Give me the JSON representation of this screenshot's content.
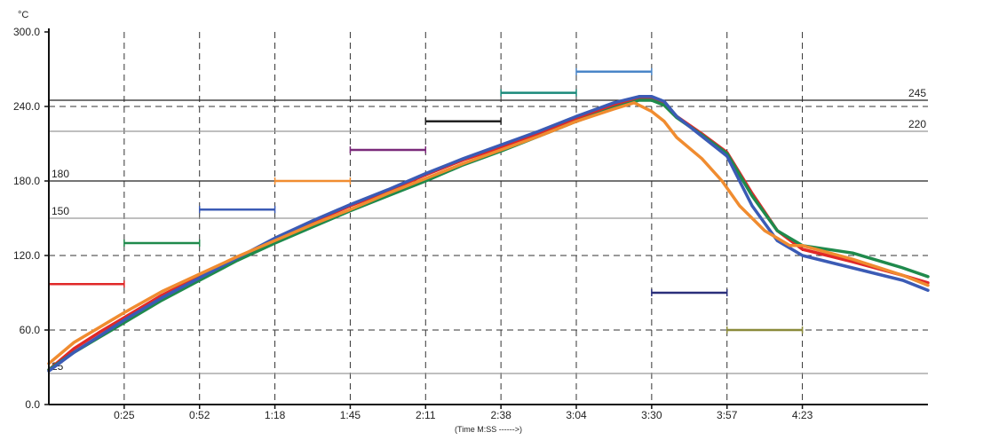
{
  "chart_data": {
    "type": "line",
    "title": "",
    "unit_label": "°C",
    "xlabel": "(Time M:SS ------>)",
    "ylabel": "",
    "x_unit": "seconds",
    "xlim": [
      0,
      350
    ],
    "ylim": [
      0,
      300
    ],
    "y_ticks": [
      {
        "value": 0,
        "label": "0.0"
      },
      {
        "value": 60,
        "label": "60.0"
      },
      {
        "value": 120,
        "label": "120.0"
      },
      {
        "value": 180,
        "label": "180.0"
      },
      {
        "value": 240,
        "label": "240.0"
      },
      {
        "value": 300,
        "label": "300.0"
      }
    ],
    "x_ticks": [
      {
        "value": 30,
        "label": "0:25"
      },
      {
        "value": 60,
        "label": "0:52"
      },
      {
        "value": 90,
        "label": "1:18"
      },
      {
        "value": 120,
        "label": "1:45"
      },
      {
        "value": 150,
        "label": "2:11"
      },
      {
        "value": 180,
        "label": "2:38"
      },
      {
        "value": 210,
        "label": "3:04"
      },
      {
        "value": 240,
        "label": "3:30"
      },
      {
        "value": 270,
        "label": "3:57"
      },
      {
        "value": 300,
        "label": "4:23"
      }
    ],
    "reference_lines": [
      {
        "value": 245,
        "label": "245",
        "color": "#222222",
        "label_side": "right"
      },
      {
        "value": 220,
        "label": "220",
        "color": "#999999",
        "label_side": "right"
      },
      {
        "value": 180,
        "label": "180",
        "color": "#222222",
        "label_side": "left"
      },
      {
        "value": 150,
        "label": "150",
        "color": "#999999",
        "label_side": "left"
      },
      {
        "value": 25,
        "label": "25",
        "color": "#999999",
        "label_side": "left"
      }
    ],
    "segments": [
      {
        "x0": 0,
        "x1": 30,
        "y": 97,
        "color": "#e02828"
      },
      {
        "x0": 30,
        "x1": 60,
        "y": 130,
        "color": "#1f8a4c"
      },
      {
        "x0": 60,
        "x1": 90,
        "y": 157,
        "color": "#3b5bb5"
      },
      {
        "x0": 90,
        "x1": 120,
        "y": 180,
        "color": "#f08c30"
      },
      {
        "x0": 120,
        "x1": 150,
        "y": 205,
        "color": "#7a2a7a"
      },
      {
        "x0": 150,
        "x1": 180,
        "y": 228,
        "color": "#222222"
      },
      {
        "x0": 180,
        "x1": 210,
        "y": 251,
        "color": "#1a8a7a"
      },
      {
        "x0": 210,
        "x1": 240,
        "y": 268,
        "color": "#4a86c8"
      },
      {
        "x0": 240,
        "x1": 270,
        "y": 90,
        "color": "#2a2f7a"
      },
      {
        "x0": 270,
        "x1": 300,
        "y": 60,
        "color": "#8a8a3a"
      }
    ],
    "series": [
      {
        "color": "#e02828",
        "x": [
          0,
          10,
          20,
          30,
          45,
          60,
          75,
          90,
          105,
          120,
          135,
          150,
          165,
          180,
          195,
          210,
          225,
          235,
          240,
          245,
          250,
          260,
          270,
          280,
          290,
          300,
          320,
          340,
          350
        ],
        "y": [
          28,
          45,
          58,
          70,
          88,
          103,
          118,
          133,
          147,
          160,
          172,
          185,
          197,
          207,
          218,
          230,
          241,
          247,
          247,
          242,
          232,
          218,
          203,
          170,
          140,
          125,
          115,
          104,
          98
        ]
      },
      {
        "color": "#1f8a4c",
        "x": [
          0,
          10,
          20,
          30,
          45,
          60,
          75,
          90,
          105,
          120,
          135,
          150,
          165,
          180,
          195,
          210,
          225,
          235,
          240,
          245,
          250,
          260,
          270,
          280,
          290,
          300,
          320,
          340,
          350
        ],
        "y": [
          28,
          42,
          54,
          66,
          84,
          100,
          116,
          130,
          143,
          156,
          168,
          180,
          193,
          204,
          216,
          228,
          239,
          245,
          245,
          241,
          231,
          217,
          202,
          168,
          140,
          128,
          122,
          110,
          103
        ]
      },
      {
        "color": "#3b5bb5",
        "x": [
          0,
          10,
          20,
          30,
          45,
          60,
          75,
          90,
          105,
          120,
          135,
          150,
          165,
          180,
          195,
          210,
          225,
          235,
          240,
          245,
          250,
          260,
          270,
          280,
          290,
          300,
          320,
          340,
          350
        ],
        "y": [
          27,
          42,
          55,
          68,
          86,
          102,
          118,
          134,
          148,
          161,
          173,
          186,
          198,
          209,
          220,
          232,
          243,
          248,
          248,
          244,
          232,
          216,
          200,
          160,
          132,
          120,
          110,
          100,
          92
        ]
      },
      {
        "color": "#f08c30",
        "x": [
          0,
          10,
          20,
          30,
          45,
          60,
          75,
          90,
          105,
          120,
          135,
          150,
          165,
          180,
          195,
          210,
          225,
          233,
          240,
          245,
          250,
          260,
          268,
          275,
          285,
          295,
          300,
          320,
          340,
          350
        ],
        "y": [
          33,
          50,
          62,
          74,
          91,
          105,
          119,
          132,
          145,
          157,
          170,
          182,
          194,
          205,
          216,
          228,
          238,
          243,
          236,
          228,
          215,
          198,
          180,
          160,
          140,
          128,
          128,
          117,
          104,
          96
        ]
      }
    ]
  }
}
